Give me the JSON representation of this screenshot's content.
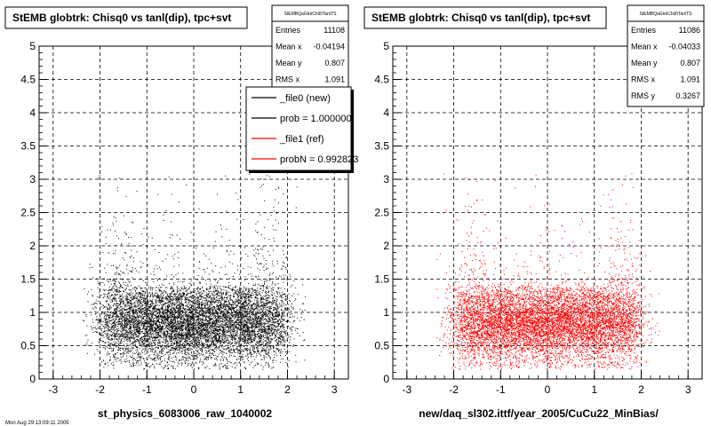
{
  "chart_data": [
    {
      "type": "scatter",
      "title": "StEMB globtrk: Chisq0 vs tanl(dip), tpc+svt",
      "xlabel": "st_physics_6083006_raw_1040002",
      "xlim": [
        -3.3,
        3.3
      ],
      "ylim": [
        0,
        5
      ],
      "xticks": [
        "-3",
        "-2",
        "-1",
        "0",
        "1",
        "2",
        "3"
      ],
      "yticks": [
        "0",
        "0.5",
        "1",
        "1.5",
        "2",
        "2.5",
        "3",
        "3.5",
        "4",
        "4.5",
        "5"
      ],
      "grid": true,
      "point_color": "#000000",
      "points_drawn": 9000,
      "stats": {
        "name": "StEMBQaGtrkChiI0TanlTS",
        "rows": [
          {
            "label": "Entries",
            "value": "11108"
          },
          {
            "label": "Mean x",
            "value": "-0.04194"
          },
          {
            "label": "Mean y",
            "value": "0.807"
          },
          {
            "label": "RMS x",
            "value": "1.091"
          }
        ]
      },
      "legend": {
        "placement": "top-right",
        "entries": [
          {
            "label": "_file0 (new)",
            "color": "#000000"
          },
          {
            "label": "prob = 1.000000",
            "color": "#000000"
          },
          {
            "label": "_file1 (ref)",
            "color": "#ff0000"
          },
          {
            "label": "probN = 0.992823",
            "color": "#ff0000"
          }
        ]
      },
      "footnote": "Mon Aug 29 13:09:11 2005"
    },
    {
      "type": "scatter",
      "title": "StEMB globtrk: Chisq0 vs tanl(dip), tpc+svt",
      "xlabel": "new/daq_sl302.ittf/year_2005/CuCu22_MinBias/",
      "xlim": [
        -3.3,
        3.3
      ],
      "ylim": [
        0,
        5
      ],
      "xticks": [
        "-3",
        "-2",
        "-1",
        "0",
        "1",
        "2",
        "3"
      ],
      "yticks": [
        "0",
        "0.5",
        "1",
        "1.5",
        "2",
        "2.5",
        "3",
        "3.5",
        "4",
        "4.5",
        "5"
      ],
      "grid": true,
      "point_color": "#ff0000",
      "points_drawn": 9000,
      "stats": {
        "name": "StEMBQaGtrkChiI0TanlTS",
        "rows": [
          {
            "label": "Entries",
            "value": "11086"
          },
          {
            "label": "Mean x",
            "value": "-0.04033"
          },
          {
            "label": "Mean y",
            "value": "0.807"
          },
          {
            "label": "RMS x",
            "value": "1.091"
          },
          {
            "label": "RMS y",
            "value": "0.3267"
          }
        ]
      }
    }
  ]
}
